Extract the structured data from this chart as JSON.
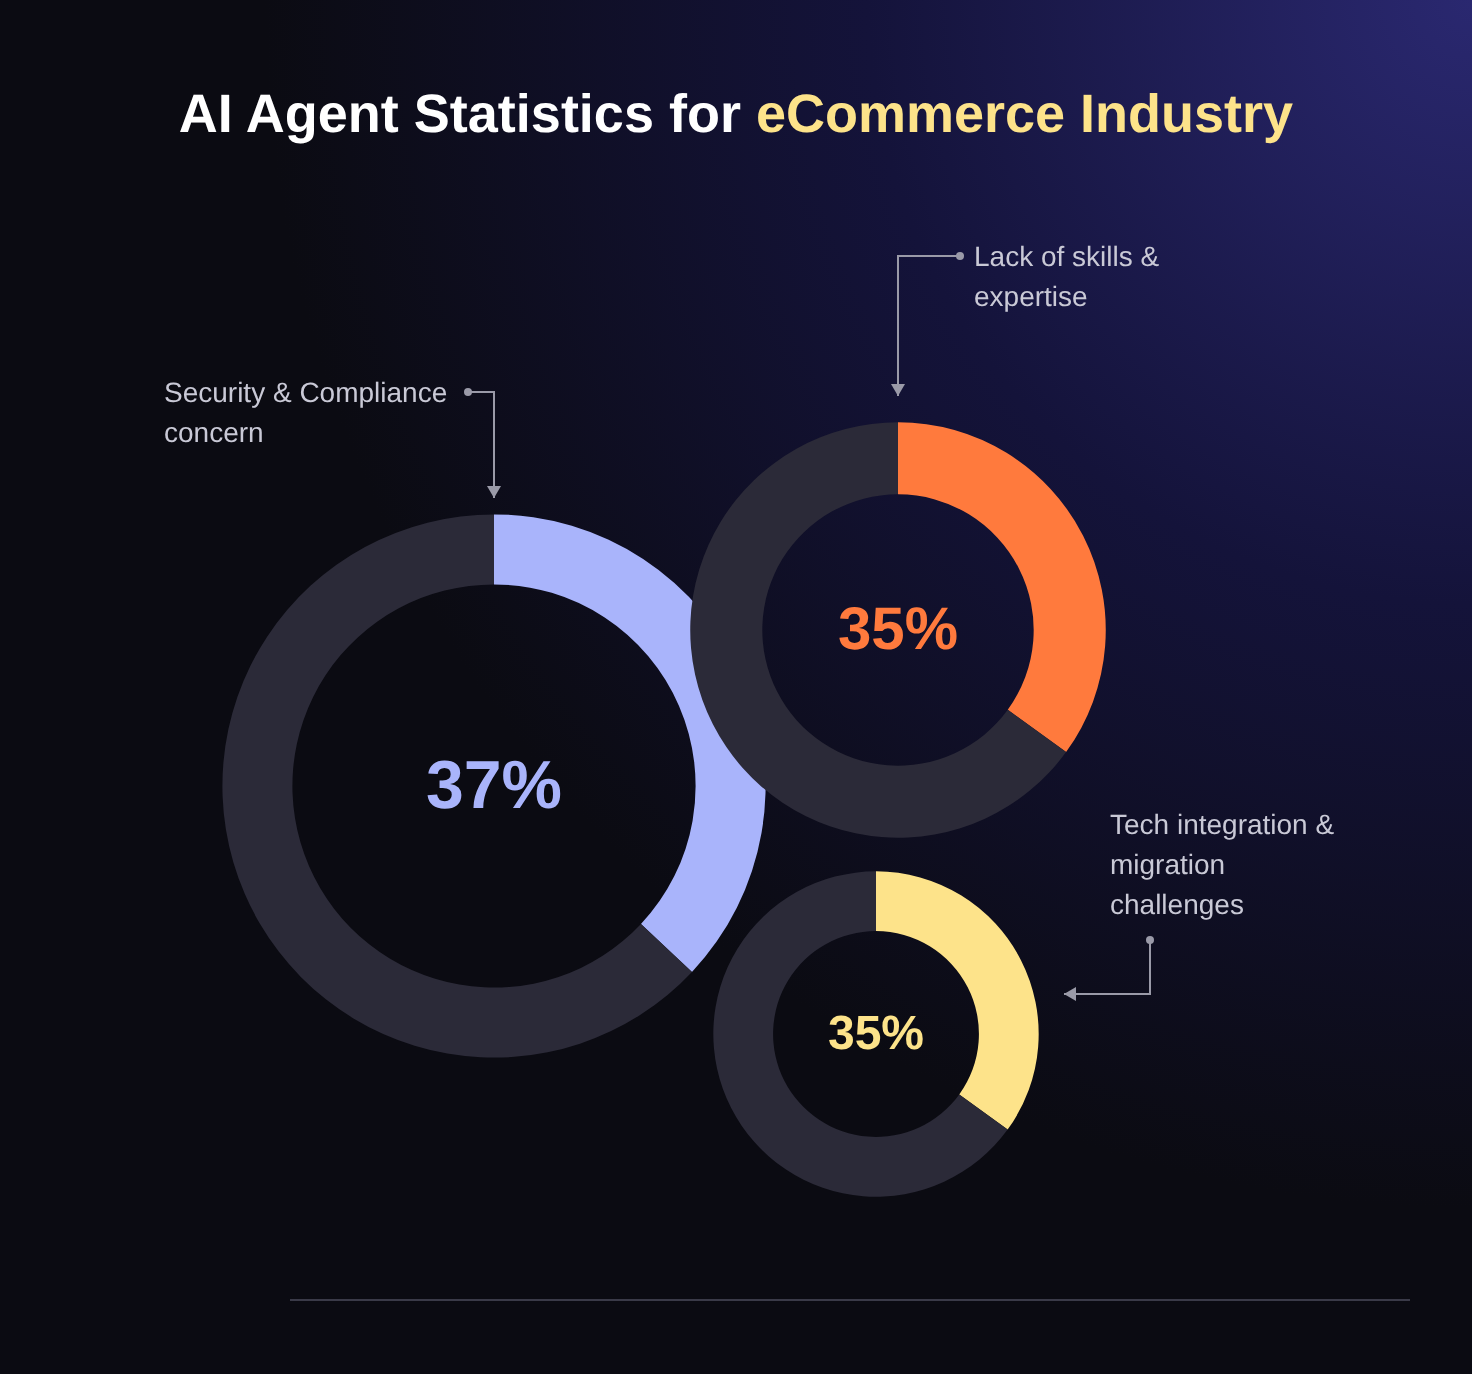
{
  "chart_data": [
    {
      "type": "donut",
      "title": "AI Agent Statistics for eCommerce Industry",
      "categories": [
        "Security & Compliance concern",
        null
      ],
      "values": [
        37,
        63
      ],
      "colors": [
        "#a9b4fb",
        "#2b2a38"
      ],
      "value_labels": [
        "37%",
        null
      ]
    },
    {
      "type": "donut",
      "categories": [
        "Lack of skills & expertise",
        null
      ],
      "values": [
        35,
        65
      ],
      "colors": [
        "#ff7a3d",
        "#2b2a38"
      ],
      "value_labels": [
        "35%",
        null
      ]
    },
    {
      "type": "donut",
      "categories": [
        "Tech integration & migration challenges",
        null
      ],
      "values": [
        35,
        65
      ],
      "colors": [
        "#fde38a",
        "#2b2a38"
      ],
      "value_labels": [
        "35%",
        null
      ]
    }
  ]
}
